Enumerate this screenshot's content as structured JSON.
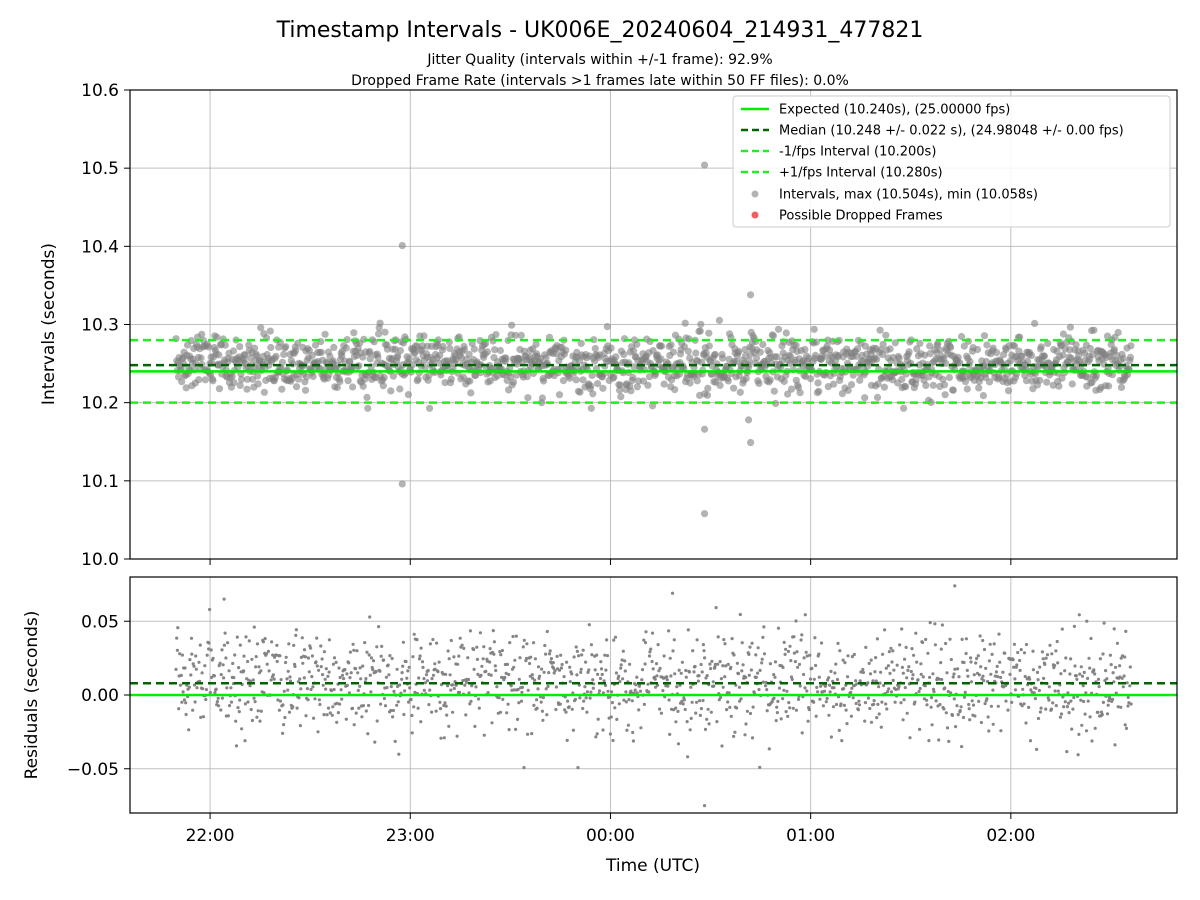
{
  "chart_data": {
    "type": "scatter",
    "title": "Timestamp Intervals - UK006E_20240604_214931_477821",
    "subtitle_lines": [
      "Jitter Quality (intervals within +/-1 frame): 92.9%",
      "Dropped Frame Rate (intervals >1 frames late within 50 FF files): 0.0%"
    ],
    "xlabel": "Time (UTC)",
    "x_tick_labels": [
      "22:00",
      "23:00",
      "00:00",
      "01:00",
      "02:00"
    ],
    "x_tick_hours": [
      22,
      23,
      24,
      25,
      26
    ],
    "x_range_hours": [
      21.6,
      26.83
    ],
    "data_range_hours": [
      21.83,
      26.6
    ],
    "panels": [
      {
        "name": "intervals",
        "ylabel": "Intervals (seconds)",
        "ylim": [
          10.0,
          10.6
        ],
        "y_ticks": [
          10.0,
          10.1,
          10.2,
          10.3,
          10.4,
          10.5,
          10.6
        ],
        "y_tick_labels": [
          "10.0",
          "10.1",
          "10.2",
          "10.3",
          "10.4",
          "10.5",
          "10.6"
        ],
        "grid": true,
        "lines": {
          "expected": 10.24,
          "median": 10.248,
          "minus_one_fps": 10.2,
          "plus_one_fps": 10.28
        },
        "scatter": {
          "center": 10.25,
          "spread": 0.022,
          "count": 1500,
          "outliers": [
            {
              "x": 22.96,
              "y": 10.401
            },
            {
              "x": 22.96,
              "y": 10.096
            },
            {
              "x": 24.47,
              "y": 10.504
            },
            {
              "x": 24.47,
              "y": 10.058
            },
            {
              "x": 24.47,
              "y": 10.166
            },
            {
              "x": 24.7,
              "y": 10.338
            },
            {
              "x": 24.69,
              "y": 10.178
            },
            {
              "x": 24.7,
              "y": 10.149
            }
          ]
        },
        "dropped_frames": [],
        "legend": {
          "placement": "top-right",
          "entries": [
            {
              "label": "Expected (10.240s), (25.00000 fps)",
              "style": "solid",
              "color": "#00ee00"
            },
            {
              "label": "Median (10.248 +/- 0.022 s), (24.98048 +/- 0.00 fps)",
              "style": "dashed",
              "color": "#006400"
            },
            {
              "label": "-1/fps Interval (10.200s)",
              "style": "dashed",
              "color": "#22ee22"
            },
            {
              "label": "+1/fps Interval (10.280s)",
              "style": "dashed",
              "color": "#22ee22"
            },
            {
              "label": "Intervals, max (10.504s), min (10.058s)",
              "style": "marker",
              "color": "#808080"
            },
            {
              "label": "Possible Dropped Frames",
              "style": "marker",
              "color": "#f06060"
            }
          ]
        }
      },
      {
        "name": "residuals",
        "ylabel": "Residuals (seconds)",
        "ylim": [
          -0.08,
          0.08
        ],
        "y_ticks": [
          -0.05,
          0.0,
          0.05
        ],
        "y_tick_labels": [
          "−0.05",
          "0.00",
          "0.05"
        ],
        "grid": true,
        "lines": {
          "expected": 0.0,
          "median": 0.008
        },
        "scatter": {
          "center": 0.008,
          "spread": 0.022,
          "count": 1500,
          "outliers": [
            {
              "x": 24.47,
              "y": -0.075
            },
            {
              "x": 25.72,
              "y": 0.074
            },
            {
              "x": 24.31,
              "y": 0.069
            },
            {
              "x": 22.07,
              "y": 0.065
            }
          ]
        }
      }
    ],
    "colors": {
      "expected": "#00ee00",
      "median": "#006400",
      "fps_band": "#22ee22",
      "points": "#808080",
      "dropped": "#f06060",
      "grid": "#b0b0b0"
    }
  }
}
